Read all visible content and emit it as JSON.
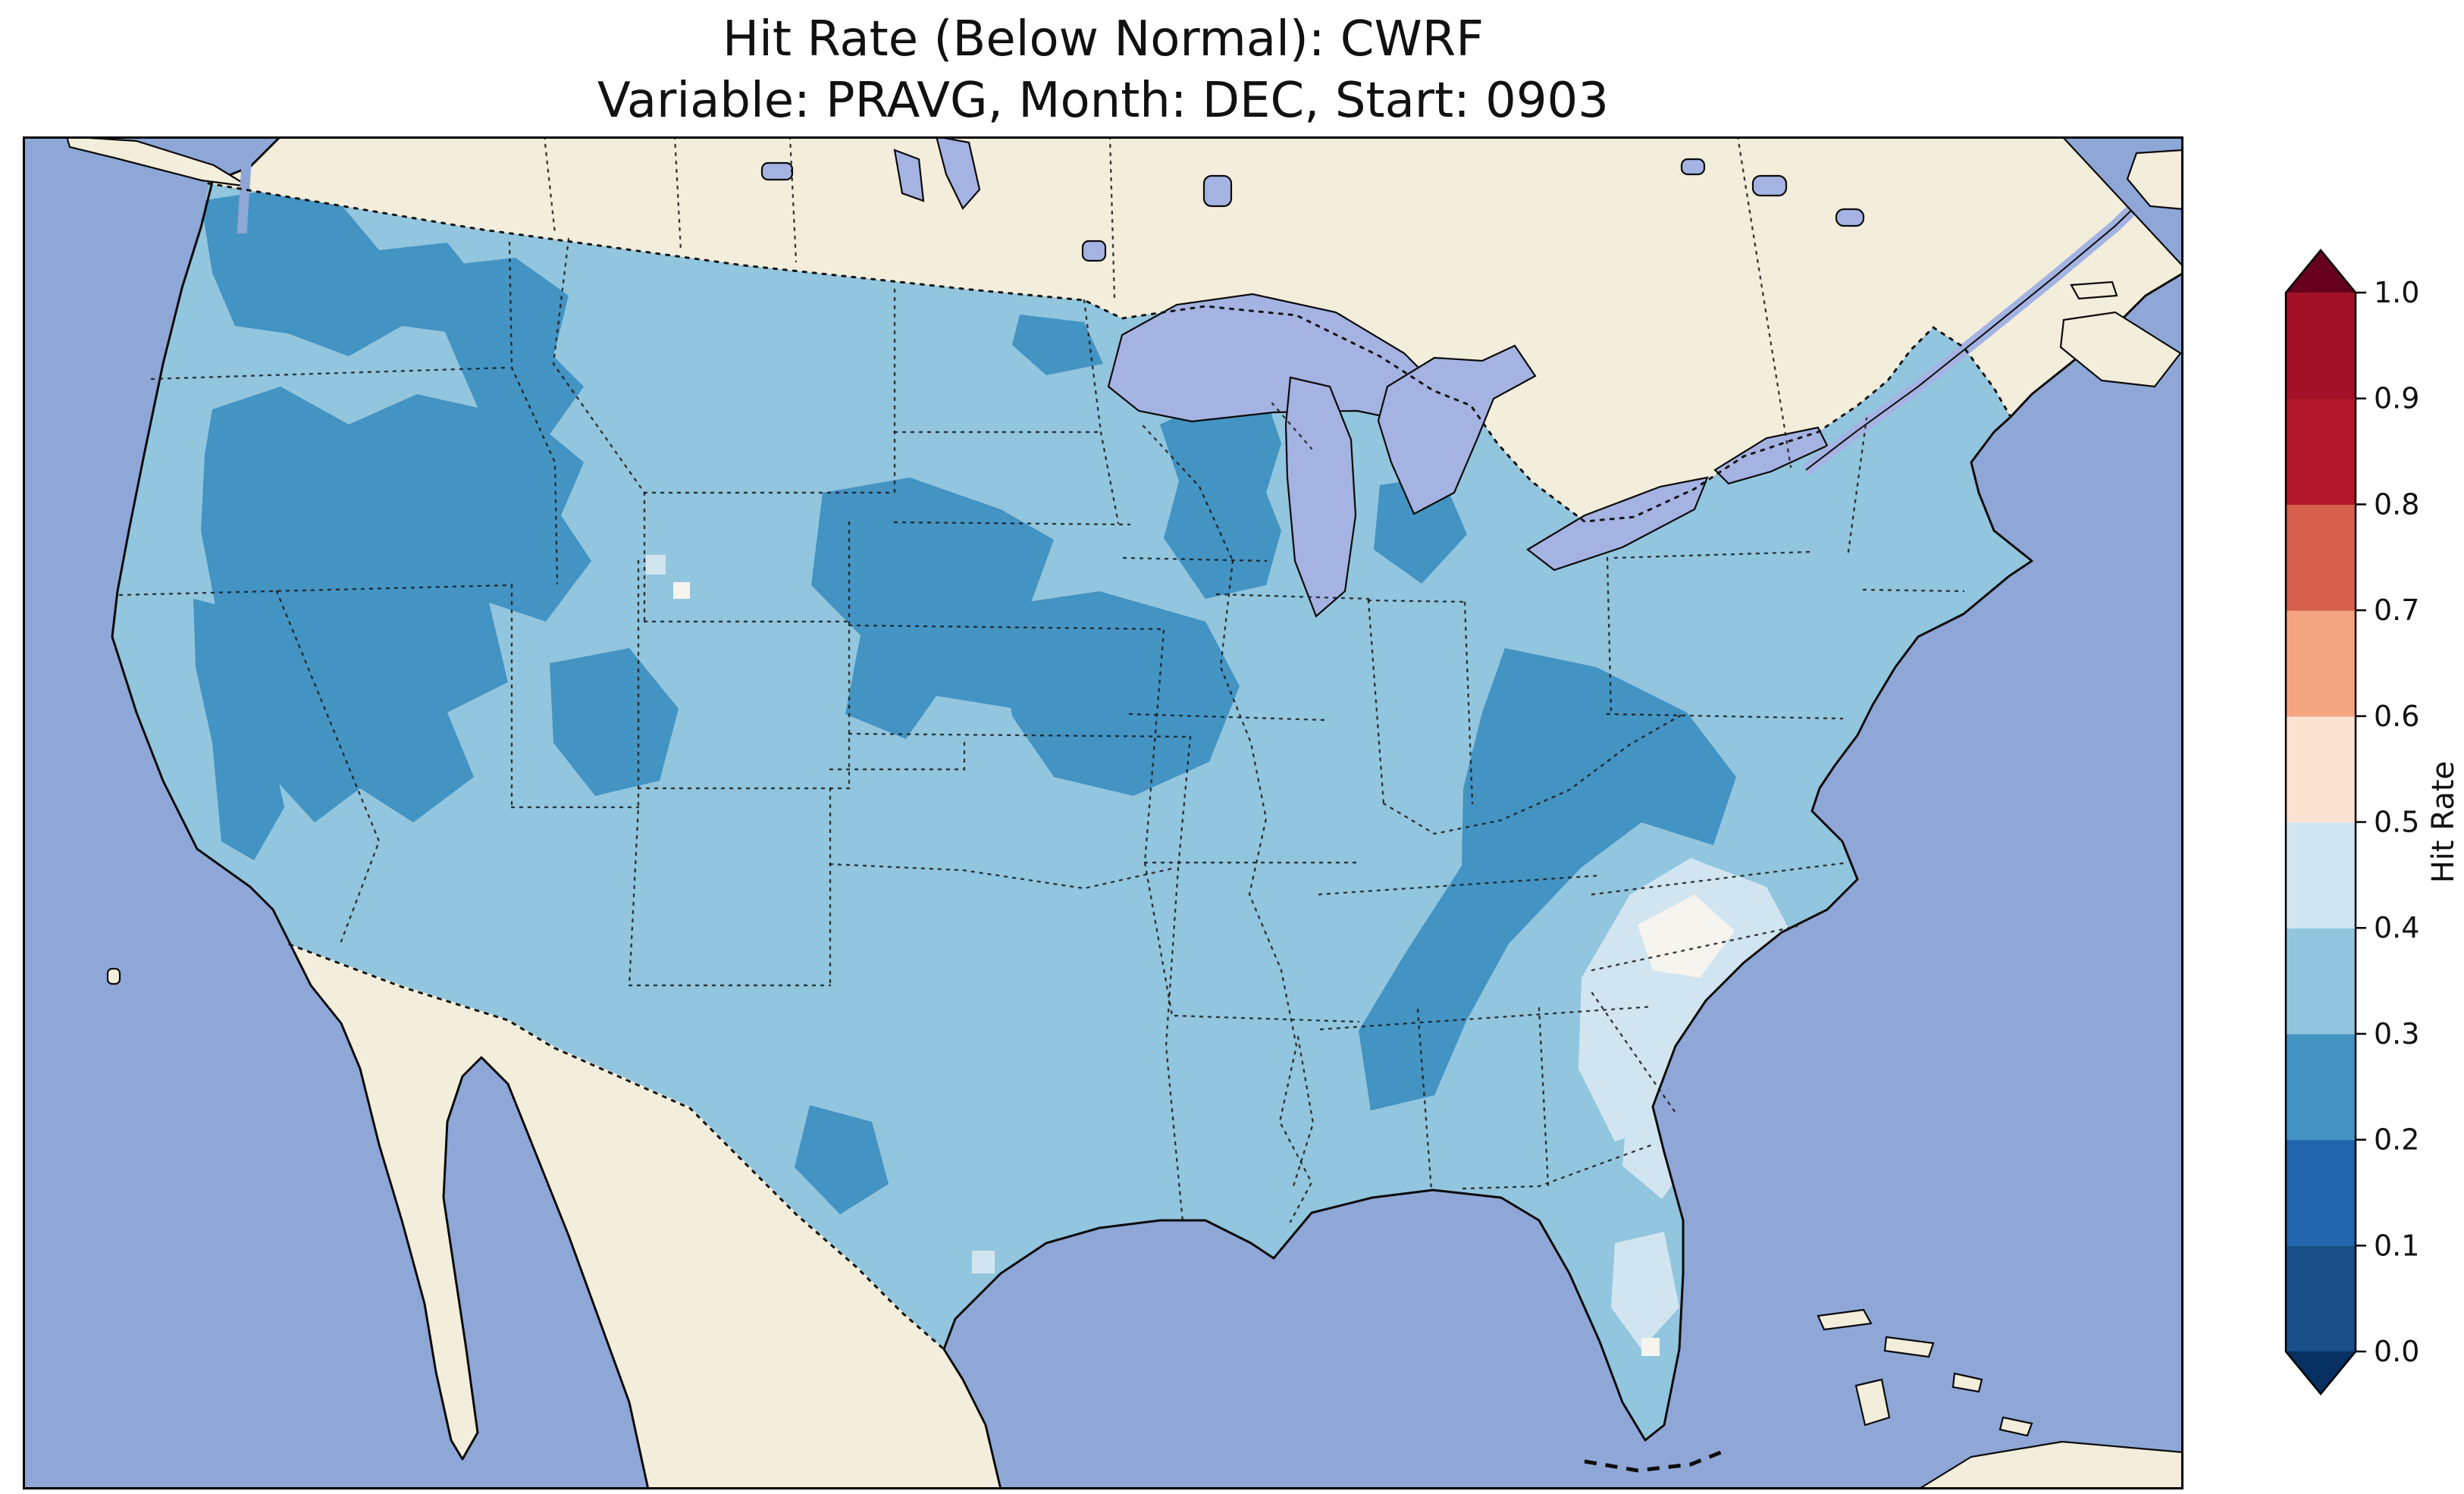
{
  "title": {
    "line1": "Hit Rate (Below Normal): CWRF",
    "line2": "Variable: PRAVG, Month: DEC, Start: 0903"
  },
  "chart_data": {
    "type": "heatmap",
    "title": "Hit Rate (Below Normal): CWRF",
    "subtitle": "Variable: PRAVG, Month: DEC, Start: 0903",
    "metric": "Hit Rate (Below Normal)",
    "model": "CWRF",
    "variable": "PRAVG",
    "month": "DEC",
    "start": "0903",
    "region": "Contiguous United States with surrounding Canada, Mexico, oceans and Great Lakes",
    "value_range_shown": [
      0.2,
      0.6
    ],
    "colorbar": {
      "label": "Hit Rate",
      "orientation": "vertical",
      "extend": "both",
      "bin_size": 0.1,
      "tick_labels": [
        "0.0",
        "0.1",
        "0.2",
        "0.3",
        "0.4",
        "0.5",
        "0.6",
        "0.7",
        "0.8",
        "0.9",
        "1.0"
      ],
      "bin_colors": [
        "#1a4f87",
        "#2166ac",
        "#4393c3",
        "#92c5de",
        "#d1e5f0",
        "#fbe3d1",
        "#f4a582",
        "#d6604d",
        "#b2182b",
        "#a11228"
      ],
      "under_color": "#053061",
      "over_color": "#67001f"
    },
    "map_bins": [
      {
        "range": "0.2–0.3",
        "color_key": "b02",
        "regions": [
          "western Washington and Cascades",
          "Idaho / western Montana Rockies",
          "Great Basin (eastern Oregon, Nevada, Utah)",
          "Sierra Nevada",
          "Colorado Rockies",
          "eastern Dakotas–Nebraska–SW Minnesota",
          "Iowa–Illinois–northern Missouri",
          "northern Minnesota",
          "Wisconsin and Upper Michigan",
          "Lower Michigan",
          "Ohio Valley–Appalachians–Tennessee–northern Alabama",
          "south Texas"
        ]
      },
      {
        "range": "0.3–0.4",
        "color_key": "b03",
        "regions": [
          "majority of the contiguous United States"
        ]
      },
      {
        "range": "0.4–0.5",
        "color_key": "b04",
        "regions": [
          "Carolinas–Georgia coastal plain",
          "Georgia coast strip",
          "south Florida",
          "scattered cells in Wyoming and along the Texas coast"
        ]
      },
      {
        "range": "0.5–0.6",
        "color_key": "b05",
        "regions": [
          "cells in central North and South Carolina",
          "cell in south Florida"
        ]
      }
    ],
    "colors": {
      "ocean": "#8ea7d7",
      "land": "#f2eedb",
      "lake": "#a4b3e2",
      "b02": "#4393c3",
      "b03": "#92c5de",
      "b04": "#d1e5f0",
      "b05": "#f6f4ef",
      "coastline": "#0a0a0a",
      "border_line": "#141414"
    }
  }
}
